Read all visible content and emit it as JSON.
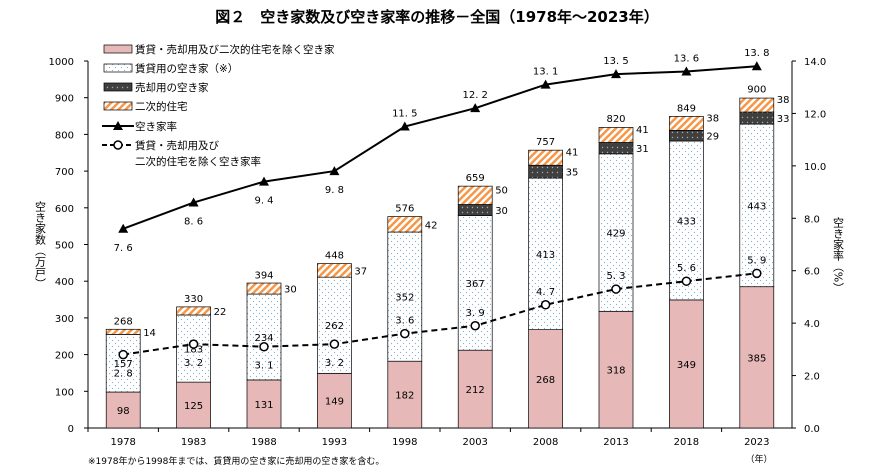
{
  "chart_data": {
    "type": "bar",
    "title": "図２　空き家数及び空き家率の推移－全国（1978年～2023年）",
    "categories": [
      "1978",
      "1983",
      "1988",
      "1993",
      "1998",
      "2003",
      "2008",
      "2013",
      "2018",
      "2023"
    ],
    "ylabel": "空き家数（万戸）",
    "y2label": "空き家率（%）",
    "xunit": "（年）",
    "ylim": [
      0,
      1000
    ],
    "y2lim": [
      0,
      14
    ],
    "yticks": [
      0,
      100,
      200,
      300,
      400,
      500,
      600,
      700,
      800,
      900,
      1000
    ],
    "y2ticks": [
      "0.0",
      "2.0",
      "4.0",
      "6.0",
      "8.0",
      "10.0",
      "12.0",
      "14.0"
    ],
    "note": "※1978年から1998年までは、賃貸用の空き家に売却用の空き家を含む。",
    "stacked_series": [
      {
        "name": "賃貸・売却用及び二次的住宅を除く空き家",
        "color": "#e6b8b7",
        "values": [
          98,
          125,
          131,
          149,
          182,
          212,
          268,
          318,
          349,
          385
        ]
      },
      {
        "name": "賃貸用の空き家（※）",
        "color": "#ffffff",
        "values": [
          157,
          183,
          234,
          262,
          352,
          367,
          413,
          429,
          433,
          443
        ]
      },
      {
        "name": "売却用の空き家",
        "color": "#404040",
        "values": [
          null,
          null,
          null,
          null,
          null,
          30,
          35,
          31,
          29,
          33
        ]
      },
      {
        "name": "二次的住宅",
        "color": "#f79646",
        "values": [
          14,
          22,
          30,
          37,
          42,
          50,
          41,
          41,
          38,
          38
        ]
      }
    ],
    "totals": [
      268,
      330,
      394,
      448,
      576,
      659,
      757,
      820,
      849,
      900
    ],
    "line_series": [
      {
        "name": "空き家率",
        "axis": "right",
        "style": "solid-triangle",
        "values": [
          7.6,
          8.6,
          9.4,
          9.8,
          11.5,
          12.2,
          13.1,
          13.5,
          13.6,
          13.8
        ]
      },
      {
        "name": "賃貸・売却用及び二次的住宅を除く空き家率",
        "name_line1": "賃貸・売却用及び",
        "name_line2": "二次的住宅を除く空き家率",
        "axis": "right",
        "style": "dashed-circle",
        "values": [
          2.8,
          3.2,
          3.1,
          3.2,
          3.6,
          3.9,
          4.7,
          5.3,
          5.6,
          5.9
        ]
      }
    ],
    "legend": "top-left",
    "grid": false
  }
}
